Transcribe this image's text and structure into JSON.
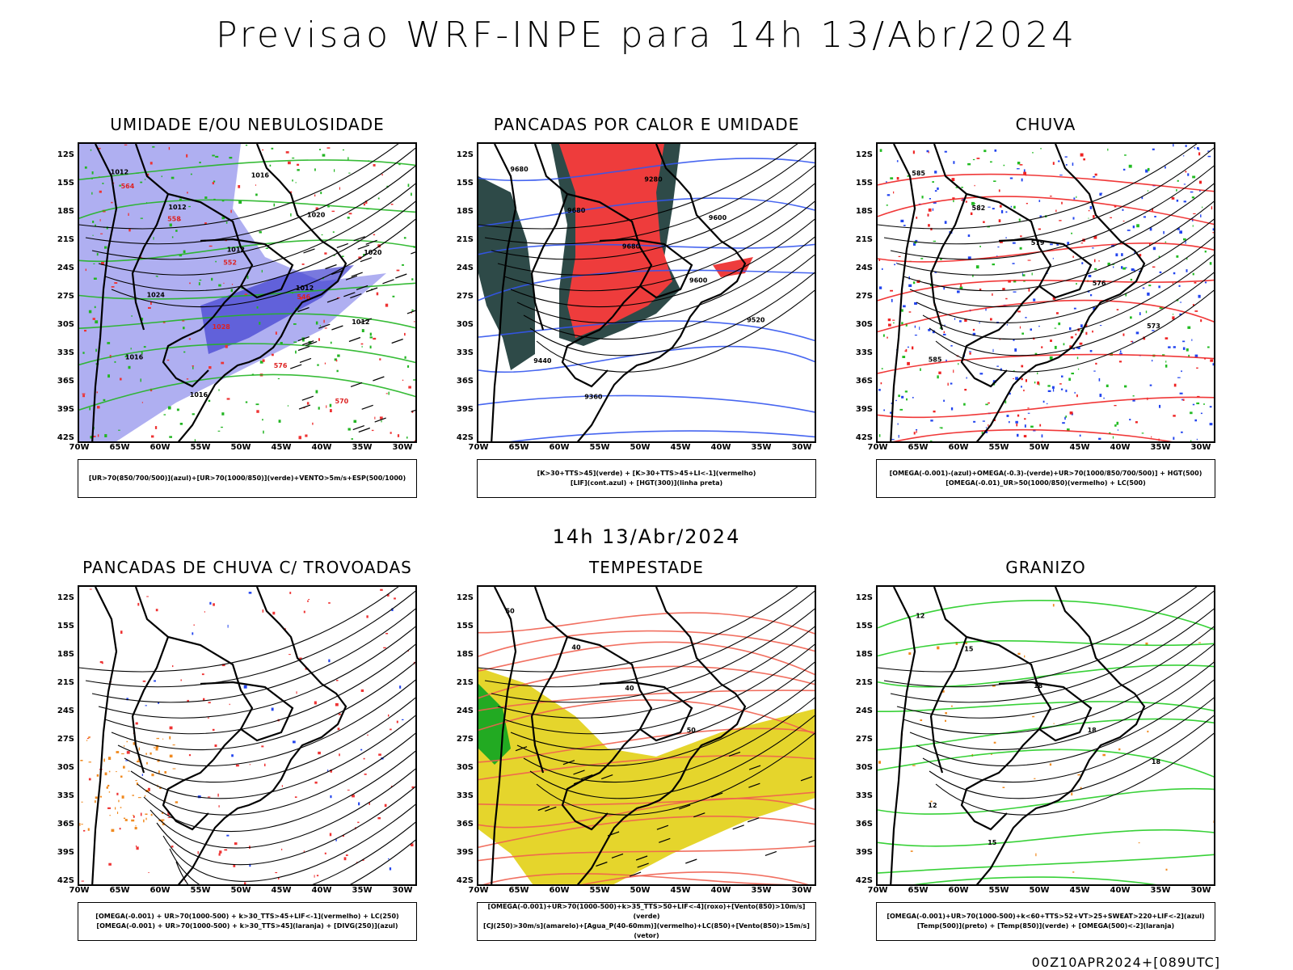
{
  "title": "Previsao WRF-INPE  para 14h 13/Abr/2024",
  "mid_title": "14h 13/Abr/2024",
  "footer": "00Z10APR2024+[089UTC]",
  "lat_ticks": [
    "12S",
    "15S",
    "18S",
    "21S",
    "24S",
    "27S",
    "30S",
    "33S",
    "36S",
    "39S",
    "42S"
  ],
  "lon_ticks": [
    "70W",
    "65W",
    "60W",
    "55W",
    "50W",
    "45W",
    "40W",
    "35W",
    "30W"
  ],
  "panels": [
    {
      "title": "UMIDADE E/OU NEBULOSIDADE",
      "legend": [
        "[UR>70(850/700/500)](azul)+[UR>70(1000/850)](verde)+VENTO>5m/s+ESP(500/1000)"
      ],
      "labels": [
        "1012",
        "1012",
        "1012",
        "1012",
        "1012",
        "1016",
        "1016",
        "1016",
        "1020",
        "1020",
        "1024",
        "1028",
        "576",
        "570",
        "564",
        "558",
        "552",
        "546"
      ],
      "colors": {
        "fill": "#a6a6f0",
        "fill_dark": "#4040d0",
        "contour_a": "#22b522",
        "contour_b": "#ee3333"
      }
    },
    {
      "title": "PANCADAS POR CALOR E UMIDADE",
      "legend": [
        "[K>30+TTS>45](verde) + [K>30+TTS>45+LI<-1](vermelho)",
        "[LIF](cont.azul) + [HGT(300)](linha preta)"
      ],
      "labels": [
        "9680",
        "9680",
        "9680",
        "9600",
        "9520",
        "9440",
        "9360",
        "9280",
        "9600"
      ],
      "colors": {
        "fill": "#ee3c3c",
        "fill_dark": "#2e4a48",
        "contour_a": "#3355ee",
        "contour_b": "#000000"
      }
    },
    {
      "title": "CHUVA",
      "legend": [
        "[OMEGA(-0.001)-(azul)+OMEGA(-0.3)-(verde)+UR>70(1000/850/700/500)] + HGT(500)",
        "[OMEGA(-0.01)_UR>50(1000/850)(vermelho) + LC(500)"
      ],
      "labels": [
        "585",
        "582",
        "579",
        "576",
        "573",
        "585"
      ],
      "colors": {
        "fill": "#2244ee",
        "fill_dark": "#22bb22",
        "contour_a": "#ee2222",
        "contour_b": "#000000"
      }
    },
    {
      "title": "PANCADAS DE CHUVA C/ TROVOADAS",
      "legend": [
        "[OMEGA(-0.001) + UR>70(1000-500) + k>30_TTS>45+LIF<-1](vermelho) + LC(250)",
        "[OMEGA(-0.001) + UR>70(1000-500) + k>30_TTS>45](laranja) + [DIVG(250)](azul)"
      ],
      "labels": [],
      "colors": {
        "fill": "#ee3333",
        "fill_dark": "#f08a20",
        "contour_a": "#2244ee",
        "contour_b": "#000000"
      }
    },
    {
      "title": "TEMPESTADE",
      "legend": [
        "[OMEGA(-0.001)+UR>70(1000-500)+k>35_TTS>50+LIF<-4](roxo)+[Vento(850)>10m/s](verde)",
        "[CJ(250)>30m/s](amarelo)+[Agua_P(40-60mm)](vermelho)+LC(850)+[Vento(850)>15m/s](vetor)"
      ],
      "labels": [
        "50",
        "40",
        "40",
        "50"
      ],
      "colors": {
        "fill": "#e5d52c",
        "fill_dark": "#22aa22",
        "contour_a": "#f06050",
        "contour_b": "#000000"
      }
    },
    {
      "title": "GRANIZO",
      "legend": [
        "[OMEGA(-0.001)+UR>70(1000-500)+k<60+TTS>52+VT>25+SWEAT>220+LIF<-2](azul)",
        "[Temp(500)](preto) + [Temp(850)](verde) + [OMEGA(500)<-2](laranja)"
      ],
      "labels": [
        "12",
        "15",
        "18",
        "18",
        "18",
        "12",
        "15"
      ],
      "colors": {
        "fill": "#f08a20",
        "fill_dark": "#22cc22",
        "contour_a": "#22cc22",
        "contour_b": "#000000"
      }
    }
  ]
}
